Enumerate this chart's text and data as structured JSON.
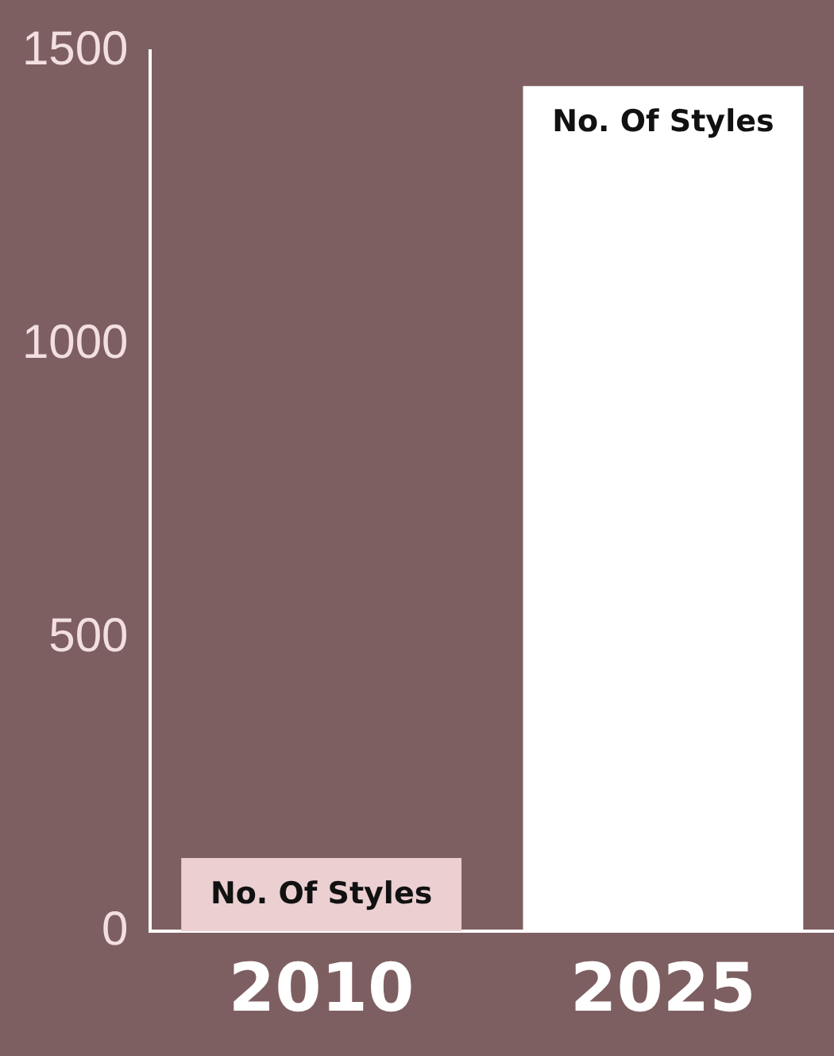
{
  "chart_data": {
    "type": "bar",
    "categories": [
      "2010",
      "2025"
    ],
    "series": [
      {
        "name": "No. Of Styles",
        "colors": [
          "#ebcfd1",
          "#ffffff"
        ],
        "values": [
          125,
          1440
        ]
      }
    ],
    "ylim": [
      0,
      1500
    ],
    "yticks": [
      0,
      500,
      1000,
      1500
    ],
    "grid": false,
    "legend": false
  }
}
